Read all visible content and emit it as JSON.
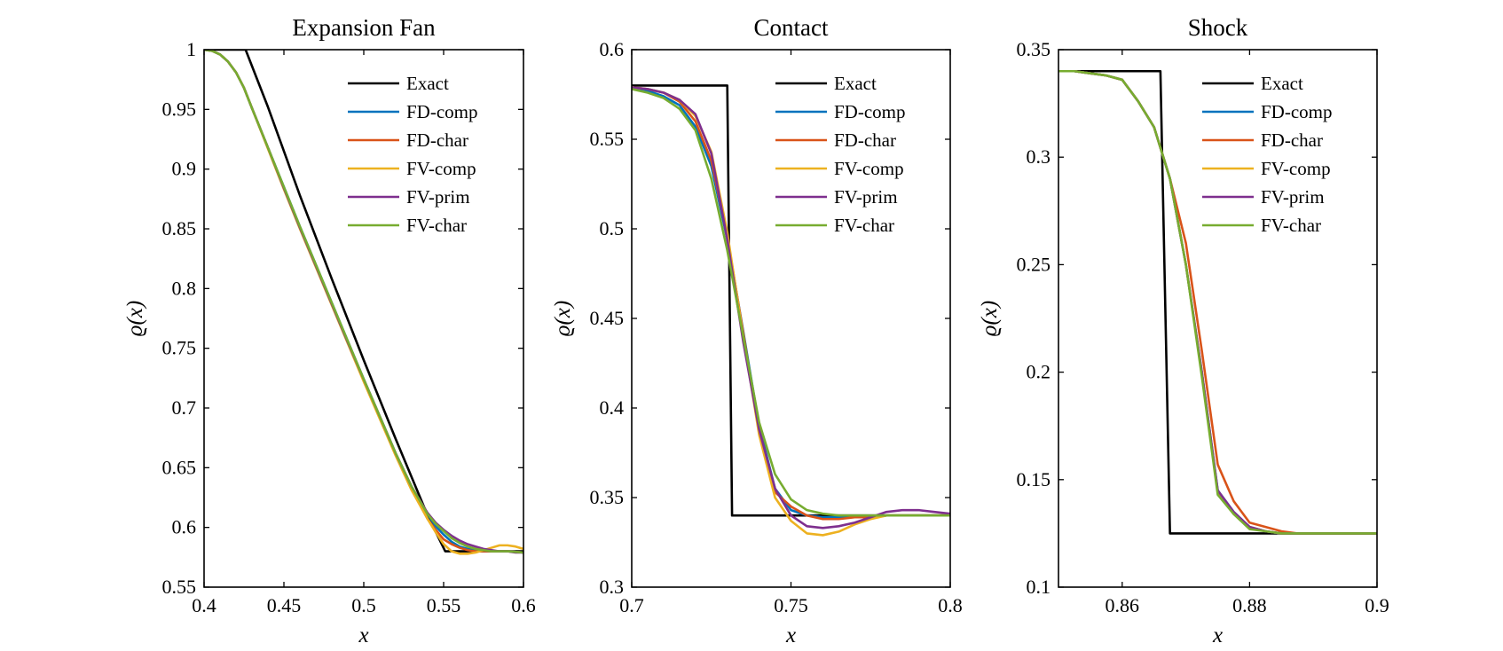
{
  "colors": {
    "Exact": "#000000",
    "FD-comp": "#0072BD",
    "FD-char": "#D95319",
    "FV-comp": "#EDB120",
    "FV-prim": "#7E2F8E",
    "FV-char": "#77AC30"
  },
  "legend": {
    "placement": "top-right",
    "entries": [
      "Exact",
      "FD-comp",
      "FD-char",
      "FV-comp",
      "FV-prim",
      "FV-char"
    ]
  },
  "chart_data": [
    {
      "type": "line",
      "title": "Expansion Fan",
      "xlabel": "x",
      "ylabel": "ϱ(x)",
      "xlim": [
        0.4,
        0.6
      ],
      "ylim": [
        0.55,
        1.0
      ],
      "xticks": [
        0.4,
        0.45,
        0.5,
        0.55,
        0.6
      ],
      "xtick_labels": [
        "0.4",
        "0.45",
        "0.5",
        "0.55",
        "0.6"
      ],
      "yticks": [
        0.55,
        0.6,
        0.65,
        0.7,
        0.75,
        0.8,
        0.85,
        0.9,
        0.95,
        1.0
      ],
      "ytick_labels": [
        "0.55",
        "0.6",
        "0.65",
        "0.7",
        "0.75",
        "0.8",
        "0.85",
        "0.9",
        "0.95",
        "1"
      ],
      "grid": false,
      "series": [
        {
          "name": "Exact",
          "x": [
            0.4,
            0.426,
            0.44,
            0.46,
            0.48,
            0.5,
            0.52,
            0.54,
            0.551,
            0.6
          ],
          "y": [
            1.0,
            1.0,
            0.952,
            0.878,
            0.808,
            0.74,
            0.674,
            0.61,
            0.58,
            0.58
          ]
        },
        {
          "name": "FD-comp",
          "x": [
            0.4,
            0.405,
            0.41,
            0.415,
            0.42,
            0.425,
            0.43,
            0.44,
            0.45,
            0.46,
            0.47,
            0.48,
            0.49,
            0.5,
            0.51,
            0.52,
            0.53,
            0.54,
            0.545,
            0.55,
            0.555,
            0.56,
            0.565,
            0.57,
            0.575,
            0.58,
            0.59,
            0.6
          ],
          "y": [
            1.0,
            0.999,
            0.996,
            0.99,
            0.981,
            0.968,
            0.951,
            0.918,
            0.885,
            0.852,
            0.82,
            0.788,
            0.756,
            0.724,
            0.693,
            0.662,
            0.634,
            0.611,
            0.601,
            0.594,
            0.588,
            0.584,
            0.582,
            0.581,
            0.58,
            0.58,
            0.58,
            0.579
          ]
        },
        {
          "name": "FD-char",
          "x": [
            0.4,
            0.405,
            0.41,
            0.415,
            0.42,
            0.425,
            0.43,
            0.44,
            0.45,
            0.46,
            0.47,
            0.48,
            0.49,
            0.5,
            0.51,
            0.52,
            0.53,
            0.54,
            0.545,
            0.55,
            0.555,
            0.56,
            0.565,
            0.57,
            0.575,
            0.58,
            0.59,
            0.6
          ],
          "y": [
            1.0,
            0.999,
            0.996,
            0.99,
            0.981,
            0.968,
            0.951,
            0.918,
            0.884,
            0.851,
            0.819,
            0.787,
            0.755,
            0.723,
            0.692,
            0.661,
            0.632,
            0.607,
            0.598,
            0.59,
            0.586,
            0.583,
            0.581,
            0.58,
            0.58,
            0.58,
            0.58,
            0.579
          ]
        },
        {
          "name": "FV-comp",
          "x": [
            0.4,
            0.405,
            0.41,
            0.415,
            0.42,
            0.425,
            0.43,
            0.44,
            0.45,
            0.46,
            0.47,
            0.48,
            0.49,
            0.5,
            0.51,
            0.52,
            0.53,
            0.54,
            0.545,
            0.55,
            0.555,
            0.56,
            0.565,
            0.57,
            0.575,
            0.58,
            0.585,
            0.59,
            0.595,
            0.6
          ],
          "y": [
            1.0,
            0.999,
            0.996,
            0.99,
            0.981,
            0.968,
            0.951,
            0.917,
            0.883,
            0.85,
            0.818,
            0.786,
            0.754,
            0.722,
            0.691,
            0.66,
            0.631,
            0.607,
            0.596,
            0.586,
            0.58,
            0.578,
            0.578,
            0.579,
            0.581,
            0.583,
            0.585,
            0.585,
            0.584,
            0.582
          ]
        },
        {
          "name": "FV-prim",
          "x": [
            0.4,
            0.405,
            0.41,
            0.415,
            0.42,
            0.425,
            0.43,
            0.44,
            0.45,
            0.46,
            0.47,
            0.48,
            0.49,
            0.5,
            0.51,
            0.52,
            0.53,
            0.54,
            0.545,
            0.55,
            0.555,
            0.56,
            0.565,
            0.57,
            0.575,
            0.58,
            0.585,
            0.59,
            0.595,
            0.6
          ],
          "y": [
            1.0,
            0.999,
            0.996,
            0.99,
            0.981,
            0.968,
            0.951,
            0.918,
            0.884,
            0.851,
            0.819,
            0.787,
            0.755,
            0.724,
            0.693,
            0.662,
            0.634,
            0.612,
            0.604,
            0.598,
            0.593,
            0.589,
            0.586,
            0.584,
            0.582,
            0.581,
            0.58,
            0.58,
            0.579,
            0.579
          ]
        },
        {
          "name": "FV-char",
          "x": [
            0.4,
            0.405,
            0.41,
            0.415,
            0.42,
            0.425,
            0.43,
            0.44,
            0.45,
            0.46,
            0.47,
            0.48,
            0.49,
            0.5,
            0.51,
            0.52,
            0.53,
            0.54,
            0.545,
            0.55,
            0.555,
            0.56,
            0.565,
            0.57,
            0.575,
            0.58,
            0.59,
            0.6
          ],
          "y": [
            1.0,
            0.999,
            0.996,
            0.99,
            0.981,
            0.968,
            0.951,
            0.918,
            0.885,
            0.852,
            0.82,
            0.788,
            0.756,
            0.724,
            0.693,
            0.662,
            0.634,
            0.611,
            0.603,
            0.597,
            0.591,
            0.587,
            0.584,
            0.582,
            0.581,
            0.58,
            0.58,
            0.579
          ]
        }
      ]
    },
    {
      "type": "line",
      "title": "Contact",
      "xlabel": "x",
      "ylabel": "ϱ(x)",
      "xlim": [
        0.7,
        0.8
      ],
      "ylim": [
        0.3,
        0.6
      ],
      "xticks": [
        0.7,
        0.75,
        0.8
      ],
      "xtick_labels": [
        "0.7",
        "0.75",
        "0.8"
      ],
      "yticks": [
        0.3,
        0.35,
        0.4,
        0.45,
        0.5,
        0.55,
        0.6
      ],
      "ytick_labels": [
        "0.3",
        "0.35",
        "0.4",
        "0.45",
        "0.5",
        "0.55",
        "0.6"
      ],
      "grid": false,
      "series": [
        {
          "name": "Exact",
          "x": [
            0.7,
            0.73,
            0.7315,
            0.8
          ],
          "y": [
            0.58,
            0.58,
            0.34,
            0.34
          ]
        },
        {
          "name": "FD-comp",
          "x": [
            0.7,
            0.705,
            0.71,
            0.715,
            0.72,
            0.725,
            0.73,
            0.735,
            0.74,
            0.745,
            0.75,
            0.755,
            0.76,
            0.765,
            0.77,
            0.775,
            0.78,
            0.785,
            0.79,
            0.795,
            0.8
          ],
          "y": [
            0.579,
            0.577,
            0.574,
            0.569,
            0.557,
            0.535,
            0.494,
            0.443,
            0.39,
            0.355,
            0.343,
            0.34,
            0.339,
            0.339,
            0.339,
            0.339,
            0.34,
            0.34,
            0.34,
            0.34,
            0.34
          ]
        },
        {
          "name": "FD-char",
          "x": [
            0.7,
            0.705,
            0.71,
            0.715,
            0.72,
            0.725,
            0.73,
            0.735,
            0.74,
            0.745,
            0.75,
            0.755,
            0.76,
            0.765,
            0.77,
            0.775,
            0.78,
            0.785,
            0.79,
            0.795,
            0.8
          ],
          "y": [
            0.579,
            0.578,
            0.576,
            0.571,
            0.56,
            0.538,
            0.496,
            0.442,
            0.388,
            0.353,
            0.345,
            0.34,
            0.338,
            0.338,
            0.339,
            0.339,
            0.34,
            0.34,
            0.34,
            0.34,
            0.34
          ]
        },
        {
          "name": "FV-comp",
          "x": [
            0.7,
            0.705,
            0.71,
            0.715,
            0.72,
            0.725,
            0.73,
            0.735,
            0.74,
            0.745,
            0.75,
            0.755,
            0.76,
            0.765,
            0.77,
            0.775,
            0.78,
            0.785,
            0.79,
            0.795,
            0.8
          ],
          "y": [
            0.579,
            0.578,
            0.576,
            0.572,
            0.563,
            0.543,
            0.498,
            0.44,
            0.385,
            0.35,
            0.337,
            0.33,
            0.329,
            0.331,
            0.335,
            0.338,
            0.34,
            0.34,
            0.34,
            0.34,
            0.34
          ]
        },
        {
          "name": "FV-prim",
          "x": [
            0.7,
            0.705,
            0.71,
            0.715,
            0.72,
            0.725,
            0.73,
            0.735,
            0.74,
            0.745,
            0.75,
            0.755,
            0.76,
            0.765,
            0.77,
            0.775,
            0.78,
            0.785,
            0.79,
            0.795,
            0.8
          ],
          "y": [
            0.579,
            0.578,
            0.576,
            0.572,
            0.564,
            0.542,
            0.494,
            0.437,
            0.388,
            0.355,
            0.34,
            0.334,
            0.333,
            0.334,
            0.336,
            0.339,
            0.342,
            0.343,
            0.343,
            0.342,
            0.341
          ]
        },
        {
          "name": "FV-char",
          "x": [
            0.7,
            0.705,
            0.71,
            0.715,
            0.72,
            0.725,
            0.73,
            0.735,
            0.74,
            0.745,
            0.75,
            0.755,
            0.76,
            0.765,
            0.77,
            0.775,
            0.78,
            0.785,
            0.79,
            0.795,
            0.8
          ],
          "y": [
            0.578,
            0.576,
            0.573,
            0.567,
            0.555,
            0.528,
            0.488,
            0.44,
            0.392,
            0.363,
            0.349,
            0.343,
            0.341,
            0.34,
            0.34,
            0.34,
            0.34,
            0.34,
            0.34,
            0.34,
            0.34
          ]
        }
      ]
    },
    {
      "type": "line",
      "title": "Shock",
      "xlabel": "x",
      "ylabel": "ϱ(x)",
      "xlim": [
        0.85,
        0.9
      ],
      "ylim": [
        0.1,
        0.35
      ],
      "xticks": [
        0.86,
        0.88,
        0.9
      ],
      "xtick_labels": [
        "0.86",
        "0.88",
        "0.9"
      ],
      "yticks": [
        0.1,
        0.15,
        0.2,
        0.25,
        0.3,
        0.35
      ],
      "ytick_labels": [
        "0.1",
        "0.15",
        "0.2",
        "0.25",
        "0.3",
        "0.35"
      ],
      "grid": false,
      "series": [
        {
          "name": "Exact",
          "x": [
            0.85,
            0.866,
            0.8675,
            0.9
          ],
          "y": [
            0.34,
            0.34,
            0.125,
            0.125
          ]
        },
        {
          "name": "FD-comp",
          "x": [
            0.85,
            0.8525,
            0.855,
            0.8575,
            0.86,
            0.8625,
            0.865,
            0.8675,
            0.87,
            0.8725,
            0.875,
            0.8775,
            0.88,
            0.8825,
            0.885,
            0.8875,
            0.89,
            0.895,
            0.9
          ],
          "y": [
            0.34,
            0.34,
            0.339,
            0.338,
            0.336,
            0.326,
            0.314,
            0.29,
            0.25,
            0.2,
            0.145,
            0.135,
            0.128,
            0.126,
            0.125,
            0.125,
            0.125,
            0.125,
            0.125
          ]
        },
        {
          "name": "FD-char",
          "x": [
            0.85,
            0.8525,
            0.855,
            0.8575,
            0.86,
            0.8625,
            0.865,
            0.8675,
            0.87,
            0.8725,
            0.875,
            0.8775,
            0.88,
            0.8825,
            0.885,
            0.8875,
            0.89,
            0.895,
            0.9
          ],
          "y": [
            0.34,
            0.34,
            0.339,
            0.338,
            0.336,
            0.326,
            0.314,
            0.29,
            0.26,
            0.21,
            0.157,
            0.14,
            0.13,
            0.128,
            0.126,
            0.125,
            0.125,
            0.125,
            0.125
          ]
        },
        {
          "name": "FV-comp",
          "x": [
            0.85,
            0.8525,
            0.855,
            0.8575,
            0.86,
            0.8625,
            0.865,
            0.8675,
            0.87,
            0.8725,
            0.875,
            0.8775,
            0.88,
            0.8825,
            0.885,
            0.8875,
            0.89,
            0.895,
            0.9
          ],
          "y": [
            0.34,
            0.34,
            0.339,
            0.338,
            0.336,
            0.326,
            0.314,
            0.29,
            0.25,
            0.2,
            0.144,
            0.134,
            0.128,
            0.126,
            0.125,
            0.125,
            0.125,
            0.125,
            0.125
          ]
        },
        {
          "name": "FV-prim",
          "x": [
            0.85,
            0.8525,
            0.855,
            0.8575,
            0.86,
            0.8625,
            0.865,
            0.8675,
            0.87,
            0.8725,
            0.875,
            0.8775,
            0.88,
            0.8825,
            0.885,
            0.8875,
            0.89,
            0.895,
            0.9
          ],
          "y": [
            0.34,
            0.34,
            0.339,
            0.338,
            0.336,
            0.326,
            0.314,
            0.29,
            0.25,
            0.2,
            0.145,
            0.135,
            0.128,
            0.126,
            0.125,
            0.125,
            0.125,
            0.125,
            0.125
          ]
        },
        {
          "name": "FV-char",
          "x": [
            0.85,
            0.8525,
            0.855,
            0.8575,
            0.86,
            0.8625,
            0.865,
            0.8675,
            0.87,
            0.8725,
            0.875,
            0.8775,
            0.88,
            0.8825,
            0.885,
            0.8875,
            0.89,
            0.895,
            0.9
          ],
          "y": [
            0.34,
            0.34,
            0.339,
            0.338,
            0.336,
            0.326,
            0.314,
            0.29,
            0.25,
            0.198,
            0.143,
            0.134,
            0.127,
            0.126,
            0.125,
            0.125,
            0.125,
            0.125,
            0.125
          ]
        }
      ]
    }
  ]
}
